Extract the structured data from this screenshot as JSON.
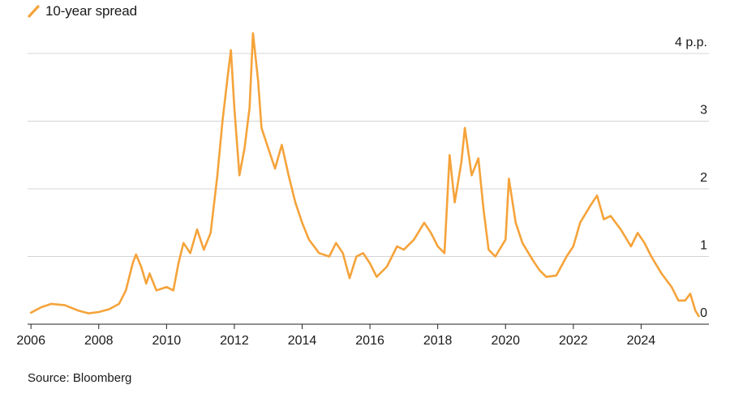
{
  "chart_data": {
    "type": "line",
    "title": "",
    "xlabel": "",
    "ylabel": "",
    "x_ticks": [
      "2006",
      "2008",
      "2010",
      "2012",
      "2014",
      "2016",
      "2018",
      "2020",
      "2022",
      "2024"
    ],
    "y_ticks": [
      "0",
      "1",
      "2",
      "3",
      "4 p.p."
    ],
    "xlim": [
      2005.9,
      2026.0
    ],
    "ylim": [
      0,
      4
    ],
    "grid": "horizontal",
    "legend": "top-left",
    "series": [
      {
        "name": "10-year spread",
        "color": "#f5a33a",
        "points": [
          [
            2006.0,
            0.17
          ],
          [
            2006.3,
            0.25
          ],
          [
            2006.6,
            0.3
          ],
          [
            2007.0,
            0.28
          ],
          [
            2007.4,
            0.2
          ],
          [
            2007.7,
            0.16
          ],
          [
            2008.0,
            0.18
          ],
          [
            2008.3,
            0.22
          ],
          [
            2008.6,
            0.3
          ],
          [
            2008.8,
            0.5
          ],
          [
            2009.0,
            0.9
          ],
          [
            2009.1,
            1.03
          ],
          [
            2009.25,
            0.85
          ],
          [
            2009.4,
            0.6
          ],
          [
            2009.5,
            0.75
          ],
          [
            2009.7,
            0.5
          ],
          [
            2010.0,
            0.55
          ],
          [
            2010.2,
            0.5
          ],
          [
            2010.35,
            0.9
          ],
          [
            2010.5,
            1.2
          ],
          [
            2010.7,
            1.05
          ],
          [
            2010.9,
            1.4
          ],
          [
            2011.1,
            1.1
          ],
          [
            2011.3,
            1.35
          ],
          [
            2011.5,
            2.2
          ],
          [
            2011.65,
            3.0
          ],
          [
            2011.8,
            3.65
          ],
          [
            2011.9,
            4.05
          ],
          [
            2012.0,
            3.2
          ],
          [
            2012.15,
            2.2
          ],
          [
            2012.3,
            2.6
          ],
          [
            2012.45,
            3.2
          ],
          [
            2012.55,
            4.3
          ],
          [
            2012.7,
            3.6
          ],
          [
            2012.8,
            2.9
          ],
          [
            2013.0,
            2.6
          ],
          [
            2013.2,
            2.3
          ],
          [
            2013.4,
            2.65
          ],
          [
            2013.6,
            2.2
          ],
          [
            2013.8,
            1.8
          ],
          [
            2014.0,
            1.5
          ],
          [
            2014.2,
            1.25
          ],
          [
            2014.5,
            1.05
          ],
          [
            2014.8,
            1.0
          ],
          [
            2015.0,
            1.2
          ],
          [
            2015.2,
            1.05
          ],
          [
            2015.4,
            0.68
          ],
          [
            2015.6,
            1.0
          ],
          [
            2015.8,
            1.05
          ],
          [
            2016.0,
            0.9
          ],
          [
            2016.2,
            0.7
          ],
          [
            2016.5,
            0.85
          ],
          [
            2016.8,
            1.15
          ],
          [
            2017.0,
            1.1
          ],
          [
            2017.3,
            1.25
          ],
          [
            2017.6,
            1.5
          ],
          [
            2017.8,
            1.35
          ],
          [
            2018.0,
            1.15
          ],
          [
            2018.2,
            1.05
          ],
          [
            2018.35,
            2.5
          ],
          [
            2018.5,
            1.8
          ],
          [
            2018.7,
            2.4
          ],
          [
            2018.8,
            2.9
          ],
          [
            2019.0,
            2.2
          ],
          [
            2019.2,
            2.45
          ],
          [
            2019.35,
            1.7
          ],
          [
            2019.5,
            1.1
          ],
          [
            2019.7,
            1.0
          ],
          [
            2020.0,
            1.25
          ],
          [
            2020.1,
            2.15
          ],
          [
            2020.3,
            1.5
          ],
          [
            2020.5,
            1.2
          ],
          [
            2020.8,
            0.95
          ],
          [
            2021.0,
            0.8
          ],
          [
            2021.2,
            0.7
          ],
          [
            2021.5,
            0.72
          ],
          [
            2021.8,
            1.0
          ],
          [
            2022.0,
            1.15
          ],
          [
            2022.2,
            1.5
          ],
          [
            2022.5,
            1.75
          ],
          [
            2022.7,
            1.9
          ],
          [
            2022.9,
            1.55
          ],
          [
            2023.1,
            1.6
          ],
          [
            2023.4,
            1.4
          ],
          [
            2023.7,
            1.15
          ],
          [
            2023.9,
            1.35
          ],
          [
            2024.1,
            1.2
          ],
          [
            2024.3,
            1.0
          ],
          [
            2024.6,
            0.75
          ],
          [
            2024.9,
            0.55
          ],
          [
            2025.1,
            0.35
          ],
          [
            2025.3,
            0.35
          ],
          [
            2025.45,
            0.45
          ],
          [
            2025.6,
            0.2
          ],
          [
            2025.7,
            0.12
          ]
        ]
      }
    ]
  },
  "source": "Source: Bloomberg"
}
